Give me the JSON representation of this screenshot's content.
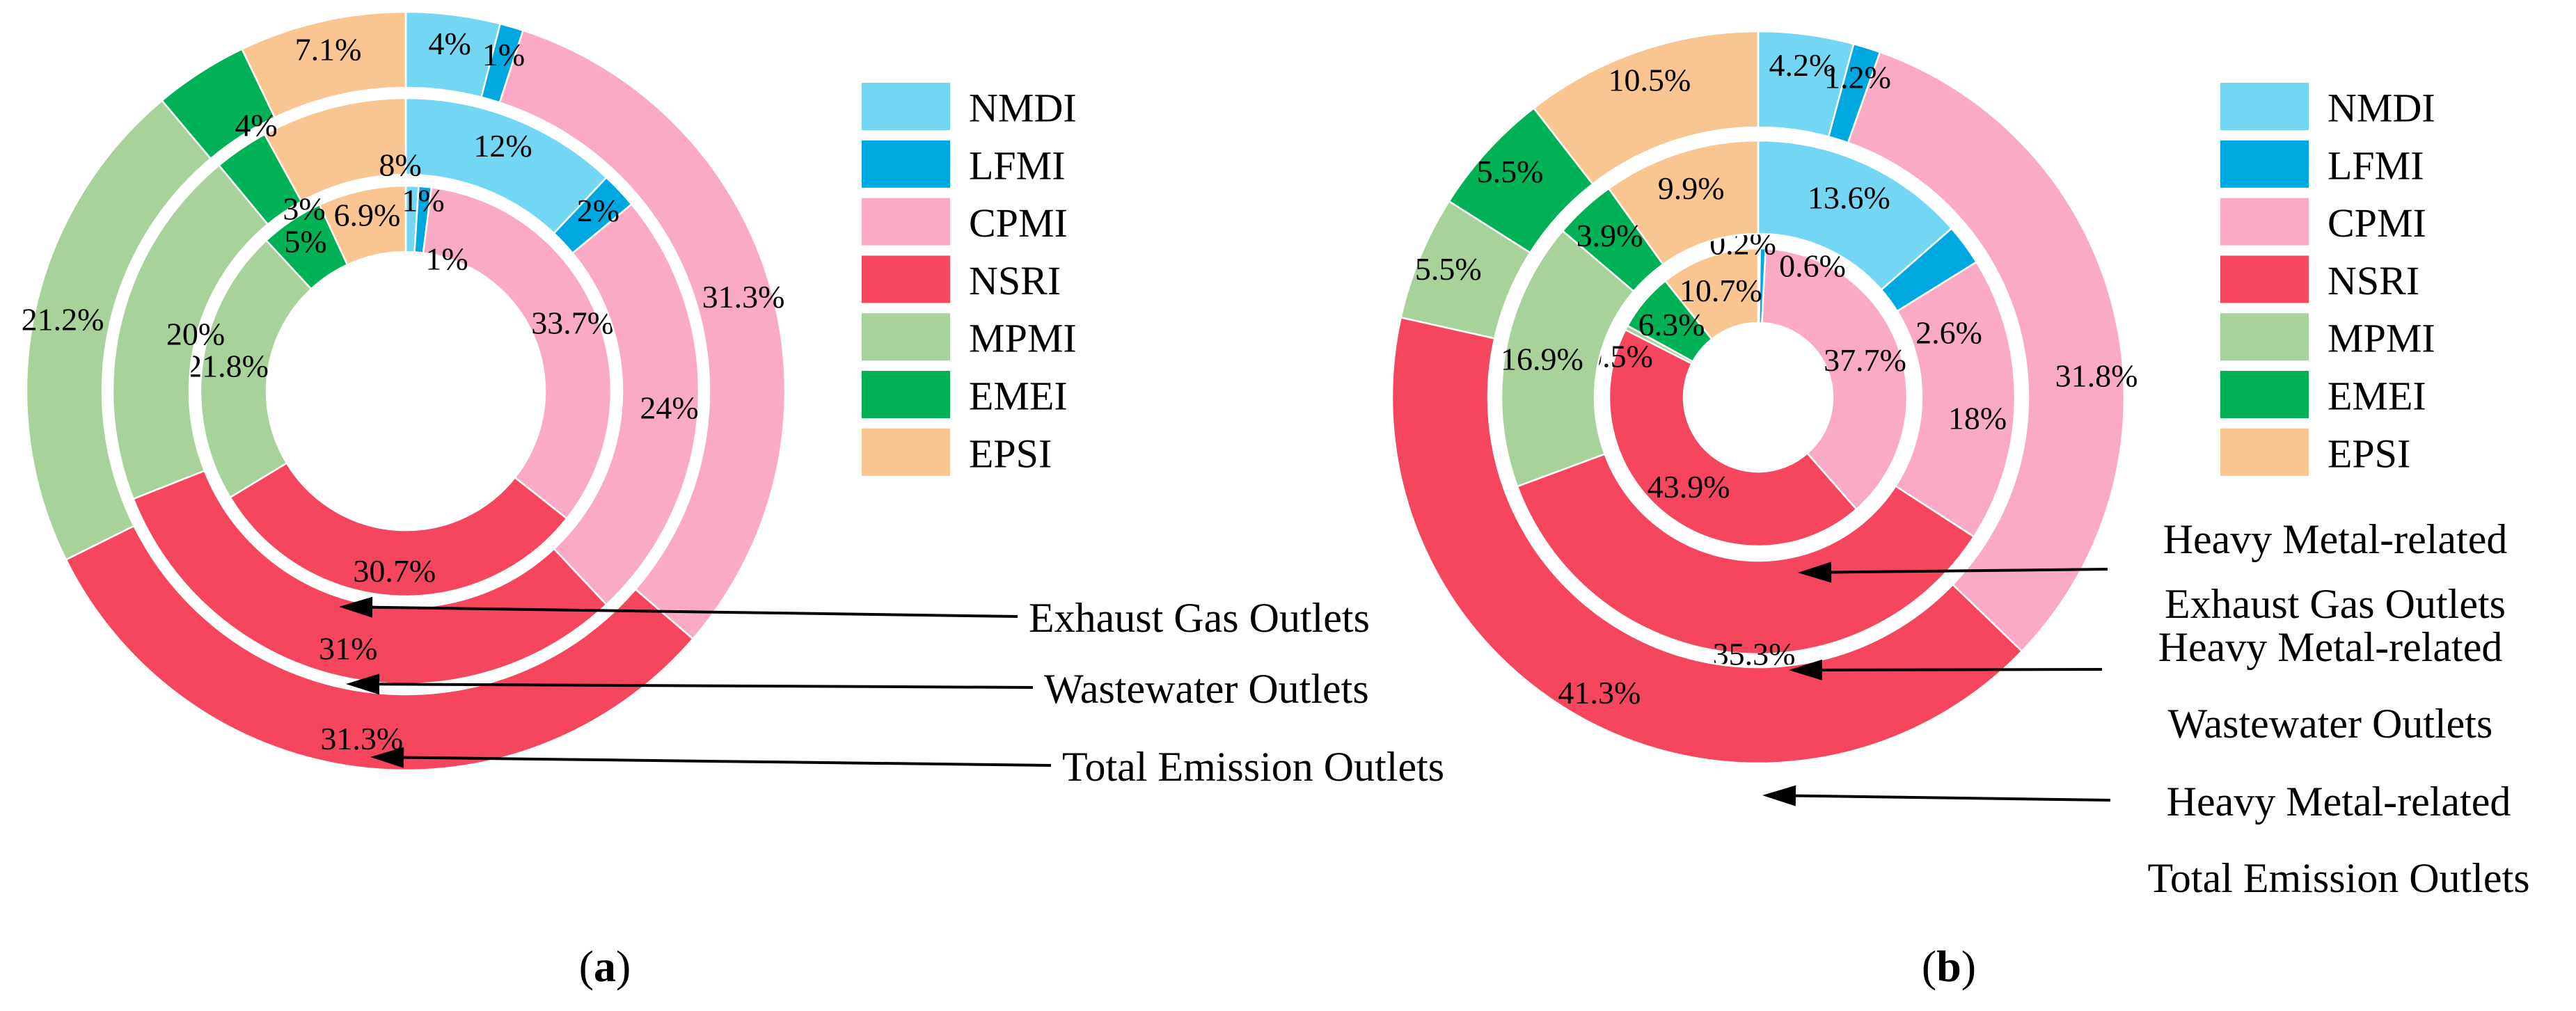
{
  "page": {
    "background": "#FFFFFF"
  },
  "categories": [
    "NMDI",
    "LFMI",
    "CPMI",
    "NSRI",
    "MPMI",
    "EMEI",
    "EPSI"
  ],
  "colors": {
    "NMDI": "#73D6F2",
    "LFMI": "#00A8E2",
    "CPMI": "#FBAAC6",
    "NSRI": "#F5465D",
    "MPMI": "#A7D29A",
    "EMEI": "#00B156",
    "EPSI": "#F9C590",
    "text": "#000000",
    "arrow": "#000000"
  },
  "chart_data": [
    {
      "type": "pie",
      "variant": "nested-donut",
      "panel": "a",
      "caption": "(a)",
      "caption_parts": [
        "(",
        "a",
        ")"
      ],
      "categories": [
        "NMDI",
        "LFMI",
        "CPMI",
        "NSRI",
        "MPMI",
        "EMEI",
        "EPSI"
      ],
      "legend": [
        "NMDI",
        "LFMI",
        "CPMI",
        "NSRI",
        "MPMI",
        "EMEI",
        "EPSI"
      ],
      "legend_position": "right",
      "series": [
        {
          "name": "Exhaust Gas Outlets",
          "ring": "inner",
          "values": [
            1,
            1,
            33.7,
            30.7,
            21.8,
            5,
            6.9
          ],
          "labels": [
            "1%",
            "1%",
            "33.7%",
            "30.7%",
            "21.8%",
            "5%",
            "6.9%"
          ]
        },
        {
          "name": "Wastewater Outlets",
          "ring": "middle",
          "values": [
            12,
            2,
            24,
            31,
            20,
            3,
            8
          ],
          "labels": [
            "12%",
            "2%",
            "24%",
            "31%",
            "20%",
            "3%",
            "8%"
          ]
        },
        {
          "name": "Total Emission Outlets",
          "ring": "outer",
          "values": [
            4,
            1,
            31.3,
            31.3,
            21.2,
            4,
            7.1
          ],
          "labels": [
            "4%",
            "1%",
            "31.3%",
            "31.3%",
            "21.2%",
            "4%",
            "7.1%"
          ]
        }
      ],
      "callouts": [
        {
          "text": [
            "Exhaust Gas Outlets"
          ],
          "target_ring": "inner"
        },
        {
          "text": [
            "Wastewater Outlets"
          ],
          "target_ring": "middle"
        },
        {
          "text": [
            "Total Emission Outlets"
          ],
          "target_ring": "outer"
        }
      ]
    },
    {
      "type": "pie",
      "variant": "nested-donut",
      "panel": "b",
      "caption": "(b)",
      "caption_parts": [
        "(",
        "b",
        ")"
      ],
      "categories": [
        "NMDI",
        "LFMI",
        "CPMI",
        "NSRI",
        "MPMI",
        "EMEI",
        "EPSI"
      ],
      "legend": [
        "NMDI",
        "LFMI",
        "CPMI",
        "NSRI",
        "MPMI",
        "EMEI",
        "EPSI"
      ],
      "legend_position": "right",
      "series": [
        {
          "name": "Heavy Metal-related Exhaust Gas Outlets",
          "ring": "inner",
          "values": [
            0.2,
            0.6,
            37.7,
            43.9,
            0.5,
            6.3,
            10.7
          ],
          "labels": [
            "0.2%",
            "0.6%",
            "37.7%",
            "43.9%",
            "0.5%",
            "6.3%",
            "10.7%"
          ]
        },
        {
          "name": "Heavy Metal-related Wastewater Outlets",
          "ring": "middle",
          "values": [
            13.6,
            2.6,
            18,
            35.3,
            16.9,
            3.9,
            9.9
          ],
          "labels": [
            "13.6%",
            "2.6%",
            "18%",
            "35.3%",
            "16.9%",
            "3.9%",
            "9.9%"
          ]
        },
        {
          "name": "Heavy Metal-related Total Emission Outlets",
          "ring": "outer",
          "values": [
            4.2,
            1.2,
            31.8,
            41.3,
            5.5,
            5.5,
            10.5
          ],
          "labels": [
            "4.2%",
            "1.2%",
            "31.8%",
            "41.3%",
            "5.5%",
            "5.5%",
            "10.5%"
          ]
        }
      ],
      "callouts": [
        {
          "text": [
            "Heavy Metal-related",
            "Exhaust Gas Outlets"
          ],
          "target_ring": "inner"
        },
        {
          "text": [
            "Heavy Metal-related",
            "Wastewater Outlets"
          ],
          "target_ring": "middle"
        },
        {
          "text": [
            "Heavy Metal-related",
            "Total Emission Outlets"
          ],
          "target_ring": "outer"
        }
      ]
    }
  ]
}
